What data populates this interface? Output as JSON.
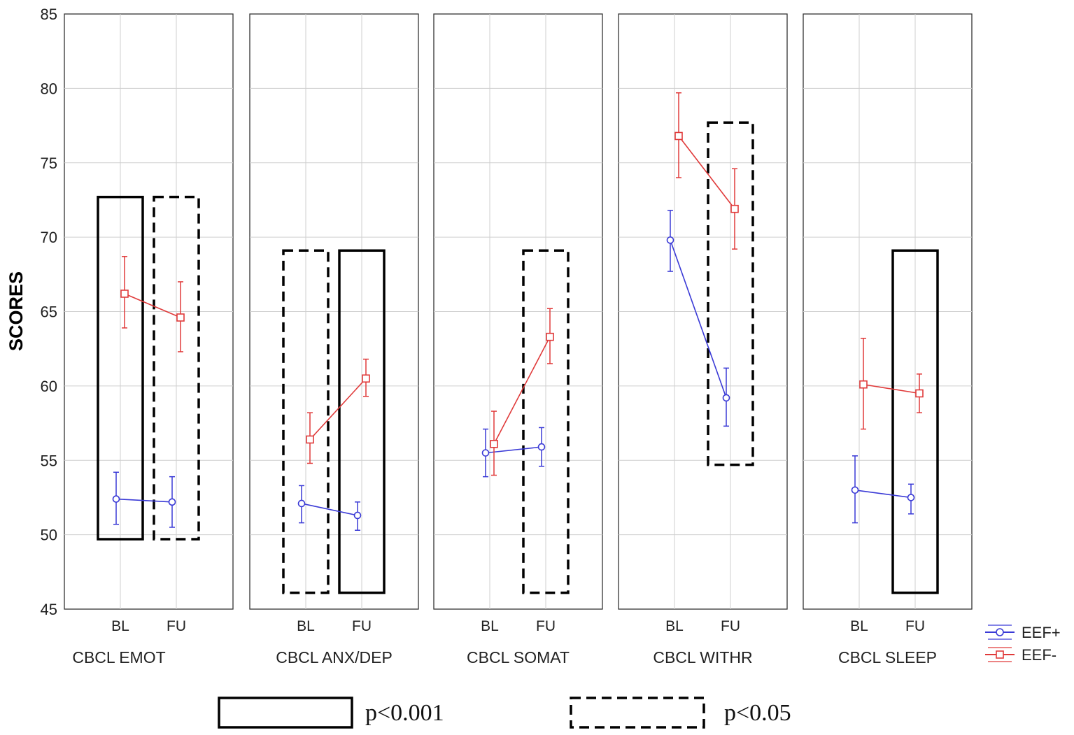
{
  "chart_data": {
    "type": "line",
    "ylabel": "SCORES",
    "ylim": [
      45,
      85
    ],
    "yticks": [
      45,
      50,
      55,
      60,
      65,
      70,
      75,
      80,
      85
    ],
    "categories": [
      "BL",
      "FU"
    ],
    "legend": {
      "placement": "bottom-right",
      "entries": [
        {
          "name": "EEF+",
          "color": "#3a3ad6",
          "marker": "circle"
        },
        {
          "name": "EEF-",
          "color": "#e03a3a",
          "marker": "square"
        }
      ]
    },
    "panels": [
      {
        "title": "CBCL EMOT",
        "series": [
          {
            "name": "EEF+",
            "values": [
              52.4,
              52.2
            ],
            "err_low": [
              50.7,
              50.5
            ],
            "err_high": [
              54.2,
              53.9
            ]
          },
          {
            "name": "EEF-",
            "values": [
              66.2,
              64.6
            ],
            "err_low": [
              63.9,
              62.3
            ],
            "err_high": [
              68.7,
              67.0
            ]
          }
        ],
        "significance": [
          {
            "category": "BL",
            "level": "p<0.001",
            "range": [
              49.7,
              72.7
            ]
          },
          {
            "category": "FU",
            "level": "p<0.05",
            "range": [
              49.7,
              72.7
            ]
          }
        ]
      },
      {
        "title": "CBCL ANX/DEP",
        "series": [
          {
            "name": "EEF+",
            "values": [
              52.1,
              51.3
            ],
            "err_low": [
              50.8,
              50.3
            ],
            "err_high": [
              53.3,
              52.2
            ]
          },
          {
            "name": "EEF-",
            "values": [
              56.4,
              60.5
            ],
            "err_low": [
              54.8,
              59.3
            ],
            "err_high": [
              58.2,
              61.8
            ]
          }
        ],
        "significance": [
          {
            "category": "BL",
            "level": "p<0.05",
            "range": [
              46.1,
              69.1
            ]
          },
          {
            "category": "FU",
            "level": "p<0.001",
            "range": [
              46.1,
              69.1
            ]
          }
        ]
      },
      {
        "title": "CBCL SOMAT",
        "series": [
          {
            "name": "EEF+",
            "values": [
              55.5,
              55.9
            ],
            "err_low": [
              53.9,
              54.6
            ],
            "err_high": [
              57.1,
              57.2
            ]
          },
          {
            "name": "EEF-",
            "values": [
              56.1,
              63.3
            ],
            "err_low": [
              54.0,
              61.5
            ],
            "err_high": [
              58.3,
              65.2
            ]
          }
        ],
        "significance": [
          {
            "category": "FU",
            "level": "p<0.05",
            "range": [
              46.1,
              69.1
            ]
          }
        ]
      },
      {
        "title": "CBCL WITHR",
        "series": [
          {
            "name": "EEF+",
            "values": [
              69.8,
              59.2
            ],
            "err_low": [
              67.7,
              57.3
            ],
            "err_high": [
              71.8,
              61.2
            ]
          },
          {
            "name": "EEF-",
            "values": [
              76.8,
              71.9
            ],
            "err_low": [
              74.0,
              69.2
            ],
            "err_high": [
              79.7,
              74.6
            ]
          }
        ],
        "significance": [
          {
            "category": "FU",
            "level": "p<0.05",
            "range": [
              54.7,
              77.7
            ]
          }
        ]
      },
      {
        "title": "CBCL SLEEP",
        "series": [
          {
            "name": "EEF+",
            "values": [
              53.0,
              52.5
            ],
            "err_low": [
              50.8,
              51.4
            ],
            "err_high": [
              55.3,
              53.4
            ]
          },
          {
            "name": "EEF-",
            "values": [
              60.1,
              59.5
            ],
            "err_low": [
              57.1,
              58.2
            ],
            "err_high": [
              63.2,
              60.8
            ]
          }
        ],
        "significance": [
          {
            "category": "FU",
            "level": "p<0.001",
            "range": [
              46.1,
              69.1
            ]
          }
        ]
      }
    ],
    "significance_key": [
      {
        "style": "solid",
        "label": "p<0.001"
      },
      {
        "style": "dashed",
        "label": "p<0.05"
      }
    ]
  }
}
